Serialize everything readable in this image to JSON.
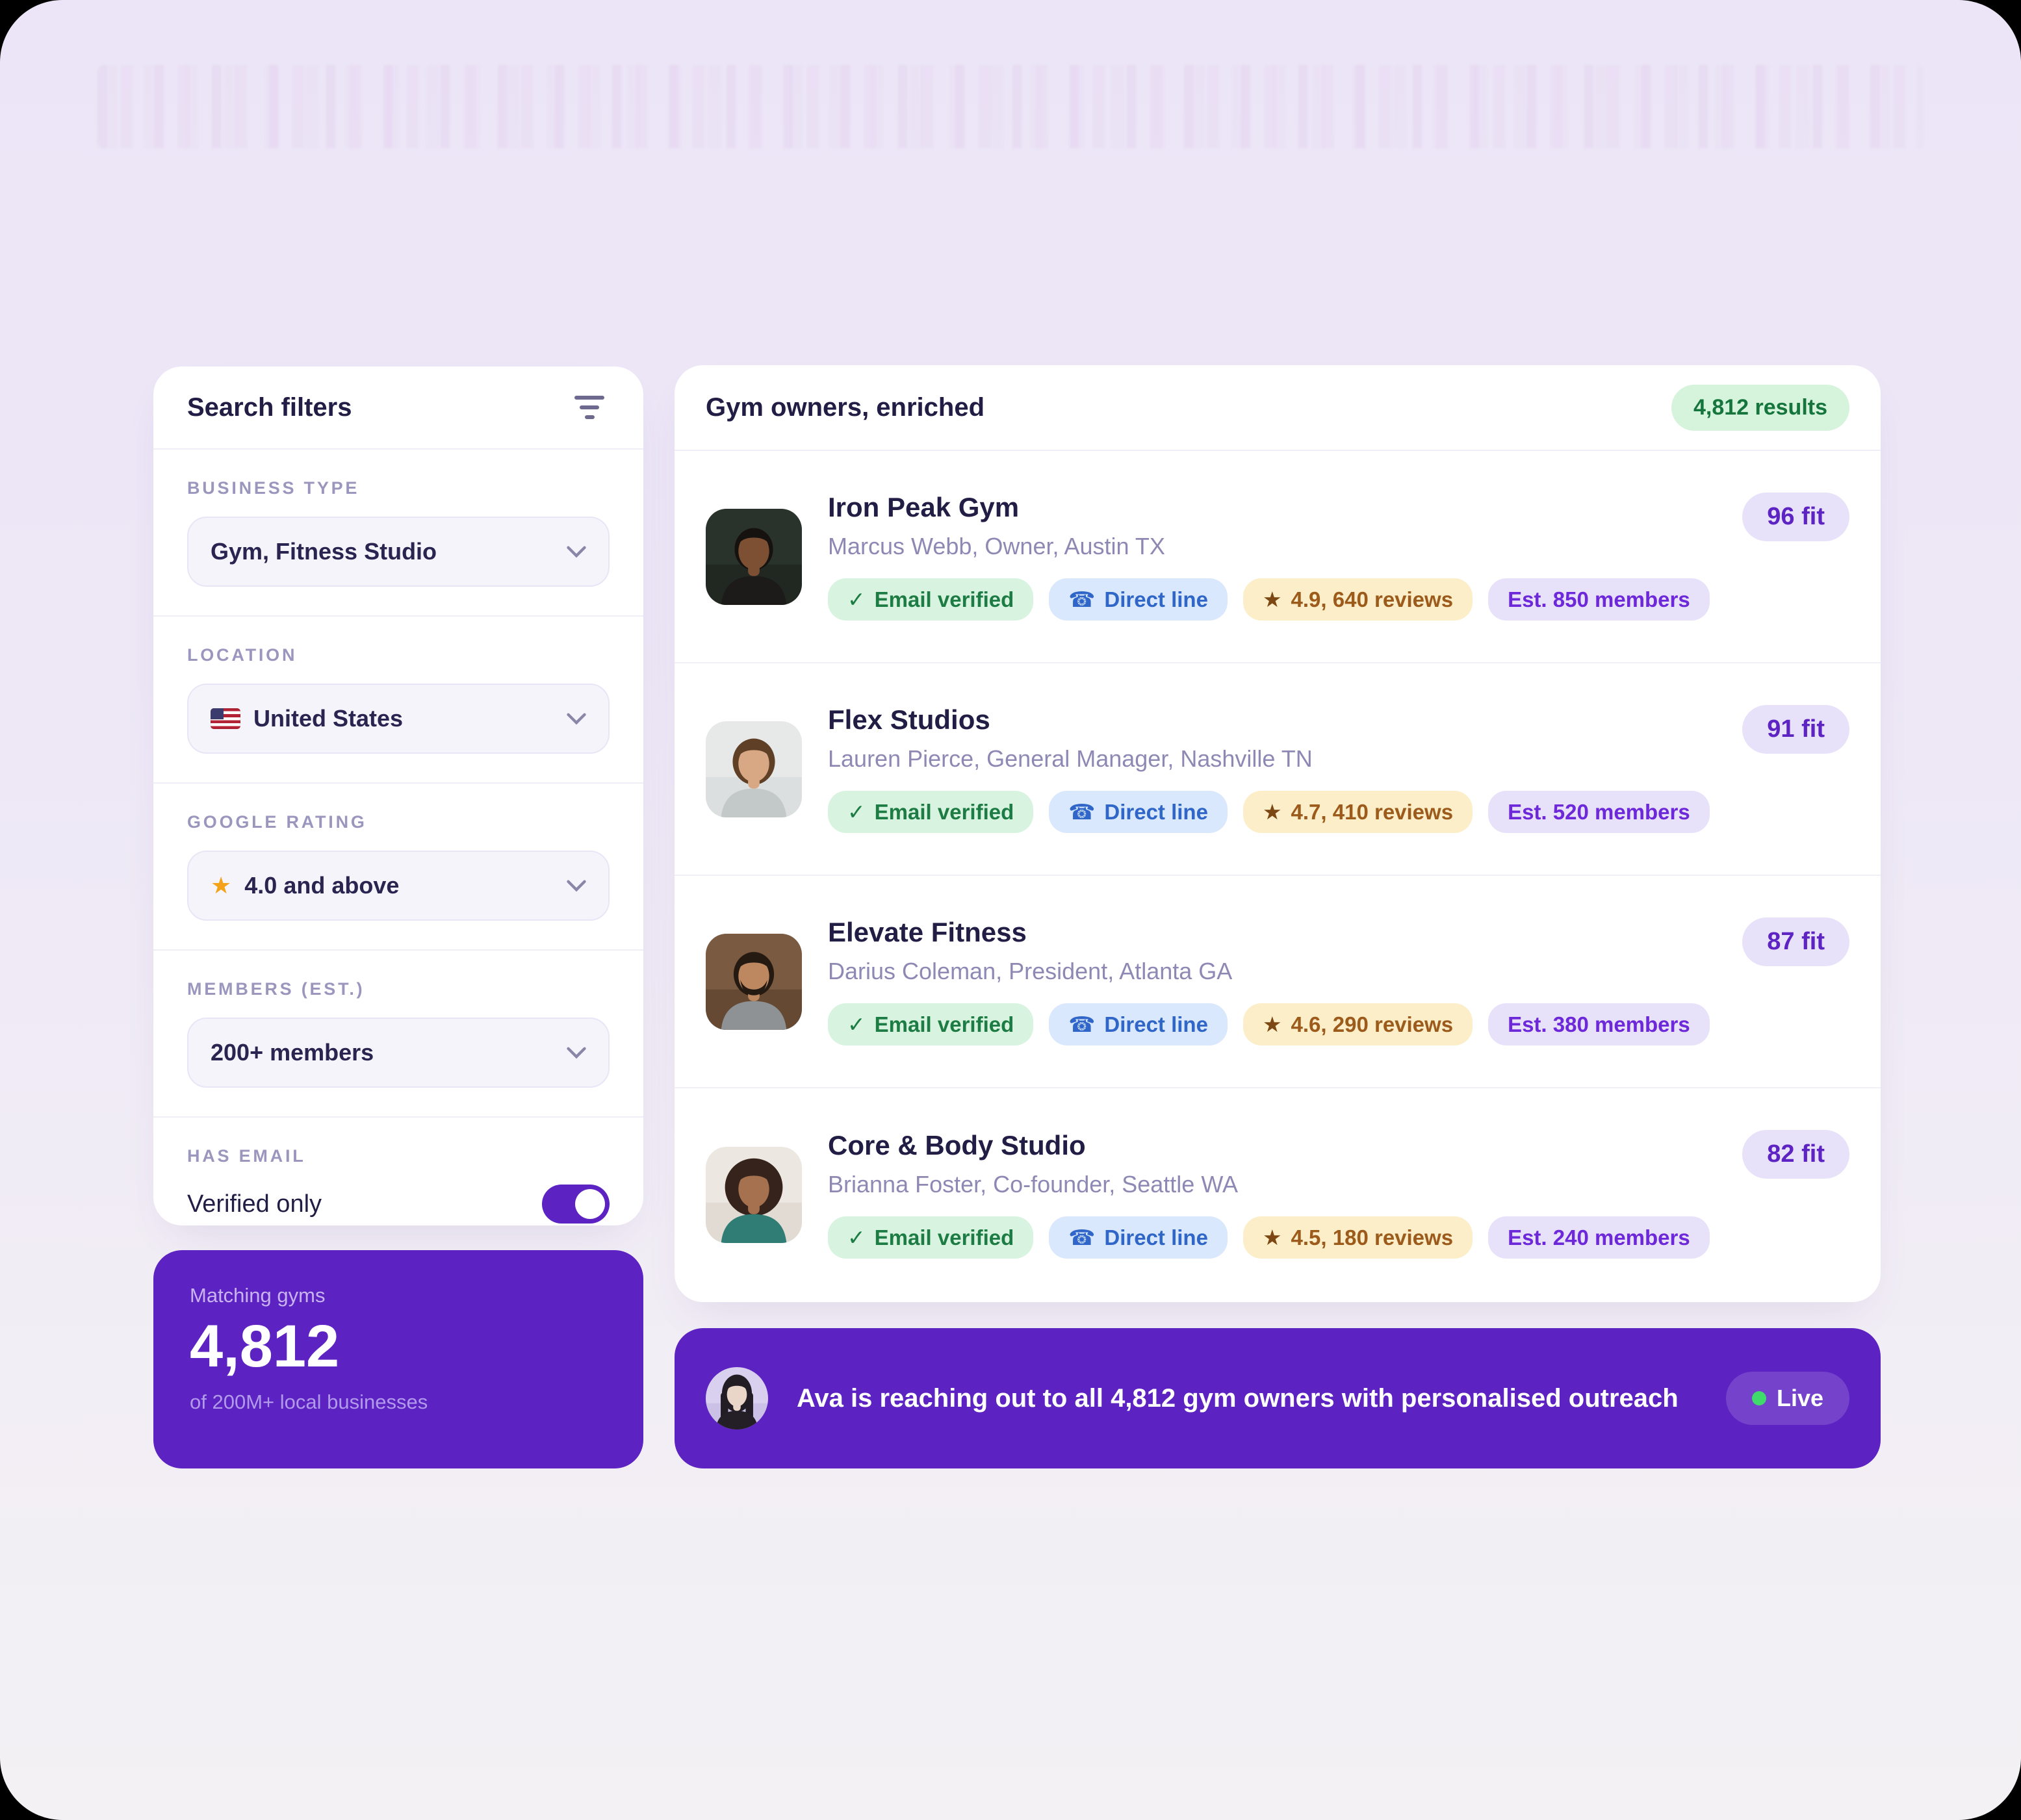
{
  "glyphs": {
    "check": "✓",
    "phone": "☎",
    "star": "★"
  },
  "colors": {
    "accent_purple": "#5c22c2",
    "page_bg_top": "#ece5f7",
    "page_bg_bottom": "#f3f1f4",
    "green_badge_bg": "#d6f3dc",
    "green_badge_text": "#15753c",
    "blue_badge_bg": "#d9e8fc",
    "blue_badge_text": "#2f66c8",
    "yellow_badge_bg": "#fbeec9",
    "yellow_badge_text": "#9c5a1b",
    "lavender_badge_bg": "#e7e2fa",
    "lavender_badge_text": "#6d28d9",
    "star_amber": "#f5a21b",
    "live_dot_green": "#3fd96c"
  },
  "sidebar": {
    "title": "Search filters",
    "groups": [
      {
        "label": "BUSINESS TYPE",
        "value": "Gym, Fitness Studio"
      },
      {
        "label": "LOCATION",
        "value": "United States"
      },
      {
        "label": "GOOGLE RATING",
        "value": "4.0 and above"
      },
      {
        "label": "MEMBERS (EST.)",
        "value": "200+ members"
      },
      {
        "label": "HAS EMAIL",
        "toggle_label": "Verified only",
        "toggle_on": true
      }
    ]
  },
  "summary_card": {
    "label": "Matching gyms",
    "count": "4,812",
    "sublabel": "of 200M+ local businesses"
  },
  "results": {
    "title": "Gym owners, enriched",
    "results_badge": "4,812 results",
    "items": [
      {
        "name": "Iron Peak Gym",
        "subtitle": "Marcus Webb, Owner, Austin TX",
        "fit": "96 fit",
        "badges": {
          "email": "Email verified",
          "phone": "Direct line",
          "rating": "4.9, 640 reviews",
          "members": "Est. 850 members"
        },
        "avatar": {
          "bg1": "#2a332b",
          "bg2": "#11150f",
          "skin": "#7d4f33",
          "hair": "#151210",
          "shirt": "#1d1b19",
          "hair_rx": 20,
          "hair_ry": 22,
          "beard": ""
        }
      },
      {
        "name": "Flex Studios",
        "subtitle": "Lauren Pierce, General Manager, Nashville TN",
        "fit": "91 fit",
        "badges": {
          "email": "Email verified",
          "phone": "Direct line",
          "rating": "4.7, 410 reviews",
          "members": "Est. 520 members"
        },
        "avatar": {
          "bg1": "#e7e9e8",
          "bg2": "#c9cecd",
          "skin": "#d8a884",
          "hair": "#5f4026",
          "shirt": "#c3c8c9",
          "hair_rx": 22,
          "hair_ry": 24,
          "beard": ""
        }
      },
      {
        "name": "Elevate Fitness",
        "subtitle": "Darius Coleman, President, Atlanta GA",
        "fit": "87 fit",
        "badges": {
          "email": "Email verified",
          "phone": "Direct line",
          "rating": "4.6, 290 reviews",
          "members": "Est. 380 members"
        },
        "avatar": {
          "bg1": "#7a5a40",
          "bg2": "#3f2c1e",
          "skin": "#bd8760",
          "hair": "#241a12",
          "shirt": "#8f9294",
          "hair_rx": 21,
          "hair_ry": 23,
          "beard": "#241a12"
        }
      },
      {
        "name": "Core & Body Studio",
        "subtitle": "Brianna Foster, Co-founder, Seattle WA",
        "fit": "82 fit",
        "badges": {
          "email": "Email verified",
          "phone": "Direct line",
          "rating": "4.5, 180 reviews",
          "members": "Est. 240 members"
        },
        "avatar": {
          "bg1": "#ece7e0",
          "bg2": "#cfc6ba",
          "skin": "#a5714e",
          "hair": "#35231c",
          "shirt": "#2f7d74",
          "hair_rx": 30,
          "hair_ry": 30,
          "beard": ""
        }
      }
    ]
  },
  "banner": {
    "text": "Ava is reaching out to all 4,812 gym owners with personalised outreach",
    "live_label": "Live",
    "avatar": {
      "bg1": "#d9cfef",
      "bg2": "#b3a4d8",
      "skin": "#ead6c8",
      "hair": "#221c24",
      "shirt": "#241f26",
      "hair_rx": 24,
      "hair_ry": 30,
      "beard": "",
      "long_hair": true
    }
  }
}
